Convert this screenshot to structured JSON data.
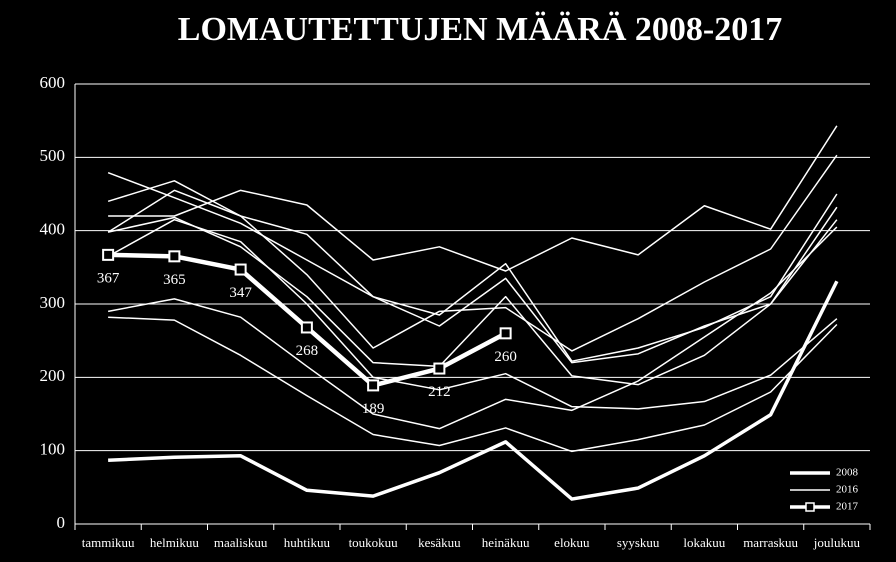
{
  "chart_data": {
    "type": "line",
    "title": "LOMAUTETTUJEN MÄÄRÄ 2008-2017",
    "categories": [
      "tammikuu",
      "helmikuu",
      "maaliskuu",
      "huhtikuu",
      "toukokuu",
      "kesäkuu",
      "heinäkuu",
      "elokuu",
      "syyskuu",
      "lokakuu",
      "marraskuu",
      "joulukuu"
    ],
    "ylim": [
      0,
      600
    ],
    "yticks": [
      0,
      100,
      200,
      300,
      400,
      500,
      600
    ],
    "grid": true,
    "legend": "bottom-right",
    "series": [
      {
        "name": "2008",
        "color": "#ffffff",
        "width": 3.5,
        "values": [
          87,
          91,
          93,
          46,
          38,
          70,
          112,
          34,
          49,
          93,
          149,
          331
        ]
      },
      {
        "color": "#ffffff",
        "width": 1.5,
        "values": [
          479,
          445,
          410,
          360,
          310,
          285,
          355,
          222,
          240,
          268,
          310,
          450
        ]
      },
      {
        "color": "#ffffff",
        "width": 1.5,
        "values": [
          440,
          468,
          420,
          395,
          310,
          270,
          335,
          220,
          232,
          270,
          300,
          415
        ]
      },
      {
        "color": "#ffffff",
        "width": 1.5,
        "values": [
          398,
          455,
          420,
          340,
          240,
          290,
          295,
          236,
          280,
          330,
          375,
          503
        ]
      },
      {
        "color": "#ffffff",
        "width": 1.5,
        "values": [
          398,
          418,
          378,
          310,
          220,
          215,
          310,
          202,
          190,
          230,
          300,
          432
        ]
      },
      {
        "color": "#ffffff",
        "width": 1.5,
        "values": [
          365,
          415,
          385,
          300,
          200,
          183,
          205,
          160,
          157,
          167,
          203,
          280
        ]
      },
      {
        "color": "#ffffff",
        "width": 1.5,
        "values": [
          290,
          307,
          282,
          215,
          150,
          130,
          170,
          155,
          195,
          255,
          315,
          405
        ]
      },
      {
        "color": "#ffffff",
        "width": 1.5,
        "values": [
          282,
          278,
          230,
          175,
          122,
          107,
          131,
          99,
          115,
          135,
          180,
          272
        ]
      },
      {
        "name": "2016",
        "color": "#ffffff",
        "width": 1.5,
        "values": [
          420,
          420,
          455,
          435,
          360,
          378,
          345,
          390,
          367,
          434,
          402,
          543
        ]
      },
      {
        "name": "2017",
        "color": "#ffffff",
        "width": 4.5,
        "marker": "square",
        "data_labels": true,
        "values": [
          367,
          365,
          347,
          268,
          189,
          212,
          260,
          null,
          null,
          null,
          null,
          null
        ]
      }
    ]
  }
}
